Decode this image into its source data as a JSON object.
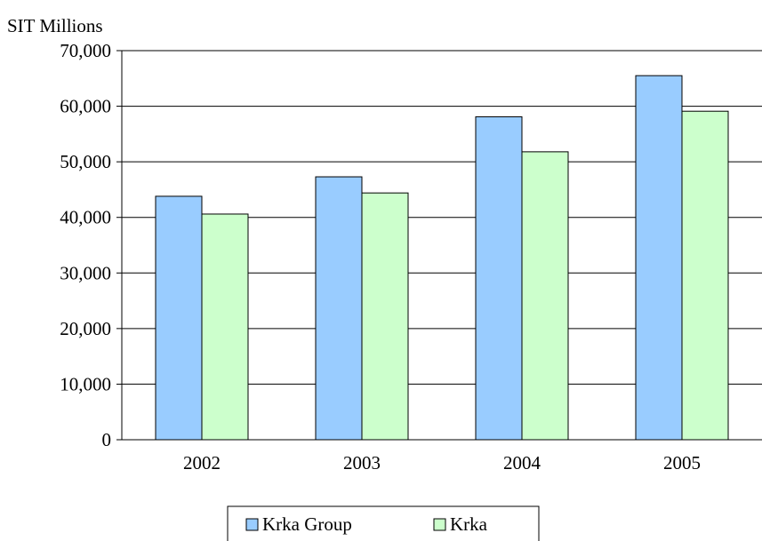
{
  "chart_data": {
    "type": "bar",
    "ylabel": "SIT Millions",
    "categories": [
      "2002",
      "2003",
      "2004",
      "2005"
    ],
    "series": [
      {
        "name": "Krka Group",
        "values": [
          43800,
          47300,
          58100,
          65500
        ],
        "color": "#99ccff"
      },
      {
        "name": "Krka",
        "values": [
          40600,
          44400,
          51800,
          59100
        ],
        "color": "#ccffcc"
      }
    ],
    "ylim": [
      0,
      70000
    ],
    "yticks": [
      "0",
      "10,000",
      "20,000",
      "30,000",
      "40,000",
      "50,000",
      "60,000",
      "70,000"
    ],
    "grid": true,
    "legend_position": "bottom"
  }
}
